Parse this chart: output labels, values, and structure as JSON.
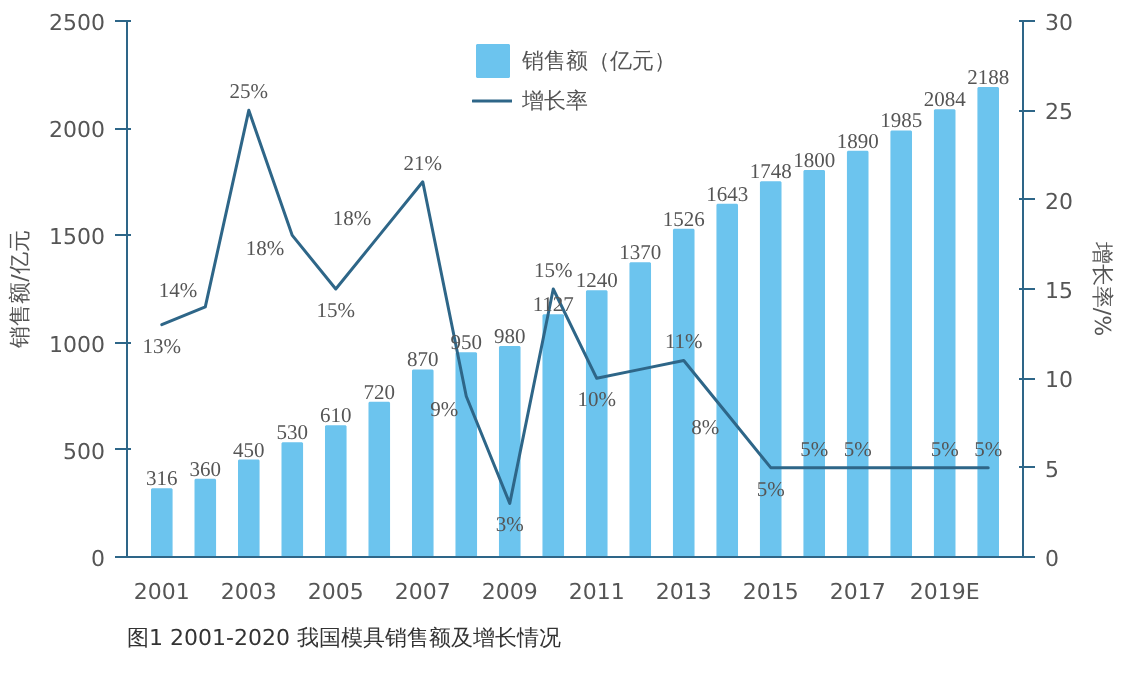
{
  "chart_data": {
    "type": "bar",
    "categories": [
      "2001",
      null,
      "2003",
      null,
      "2005",
      null,
      "2007",
      null,
      "2009",
      null,
      "2011",
      null,
      "2013",
      null,
      "2015",
      null,
      "2017",
      null,
      "2019E",
      null
    ],
    "ylabel": "销售额/亿元",
    "y2label": "增长率/%",
    "ylim": [
      0,
      2500
    ],
    "yticks": [
      0,
      500,
      1000,
      1500,
      2000,
      2500
    ],
    "y2lim": [
      0,
      30
    ],
    "y2ticks": [
      0,
      5,
      10,
      15,
      20,
      25,
      30
    ],
    "legend": "top",
    "grid": false,
    "annotations": [
      "图1 2001-2020 我国模具销售额及增长情况"
    ],
    "series": [
      {
        "name": "销售额（亿元）",
        "color": "#6cc4ee",
        "values": [
          316,
          360,
          450,
          530,
          610,
          720,
          870,
          950,
          980,
          1127,
          1240,
          1370,
          1526,
          1643,
          1748,
          1800,
          1890,
          1985,
          2084,
          2188
        ],
        "value_labels": [
          "316",
          "360",
          "450",
          "530",
          "610",
          "720",
          "870",
          "950",
          "980",
          "1127",
          "1240",
          "1370",
          "1526",
          "1643",
          "1748",
          "1800",
          "1890",
          "1985",
          "2084",
          "2188"
        ]
      },
      {
        "name": "增长率",
        "type": "line",
        "axis": "y2",
        "color": "#2e6688",
        "values": [
          13,
          14,
          25,
          18,
          15,
          18,
          21,
          9,
          3,
          15,
          10,
          10.5,
          11,
          8,
          5,
          5,
          5,
          5,
          5,
          5
        ],
        "value_labels": [
          "13%",
          "14%",
          "25%",
          "18%",
          "15%",
          "18%",
          "21%",
          "9%",
          "3%",
          "15%",
          "10%",
          null,
          "11%",
          "8%",
          "5%",
          "5%",
          "5%",
          null,
          "5%",
          "5%"
        ]
      }
    ]
  }
}
